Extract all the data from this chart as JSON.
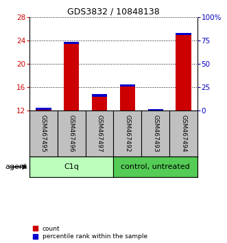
{
  "title": "GDS3832 / 10848138",
  "samples": [
    "GSM467495",
    "GSM467496",
    "GSM467497",
    "GSM467492",
    "GSM467493",
    "GSM467494"
  ],
  "red_values": [
    12.5,
    23.7,
    14.8,
    16.5,
    12.3,
    25.3
  ],
  "blue_values": [
    0.35,
    0.35,
    0.45,
    0.35,
    0.45,
    0.35
  ],
  "red_base": 12.0,
  "ylim": [
    12,
    28
  ],
  "yticks": [
    12,
    16,
    20,
    24,
    28
  ],
  "right_yticks": [
    0,
    25,
    50,
    75,
    100
  ],
  "right_ylim": [
    0,
    100
  ],
  "right_yticklabels": [
    "0",
    "25",
    "50",
    "75",
    "100%"
  ],
  "groups": [
    {
      "label": "C1q",
      "start": 0,
      "end": 3,
      "color": "#bbffbb"
    },
    {
      "label": "control, untreated",
      "start": 3,
      "end": 6,
      "color": "#55cc55"
    }
  ],
  "agent_label": "agent",
  "bar_width": 0.55,
  "red_color": "#cc0000",
  "blue_color": "#0000cc",
  "bg_color": "#c0c0c0",
  "left_label_color": "#cc0000",
  "right_label_color": "#0000bb",
  "title_fontsize": 9,
  "tick_fontsize": 7.5,
  "sample_fontsize": 6.5,
  "group_fontsize": 8,
  "legend_fontsize": 6.5
}
